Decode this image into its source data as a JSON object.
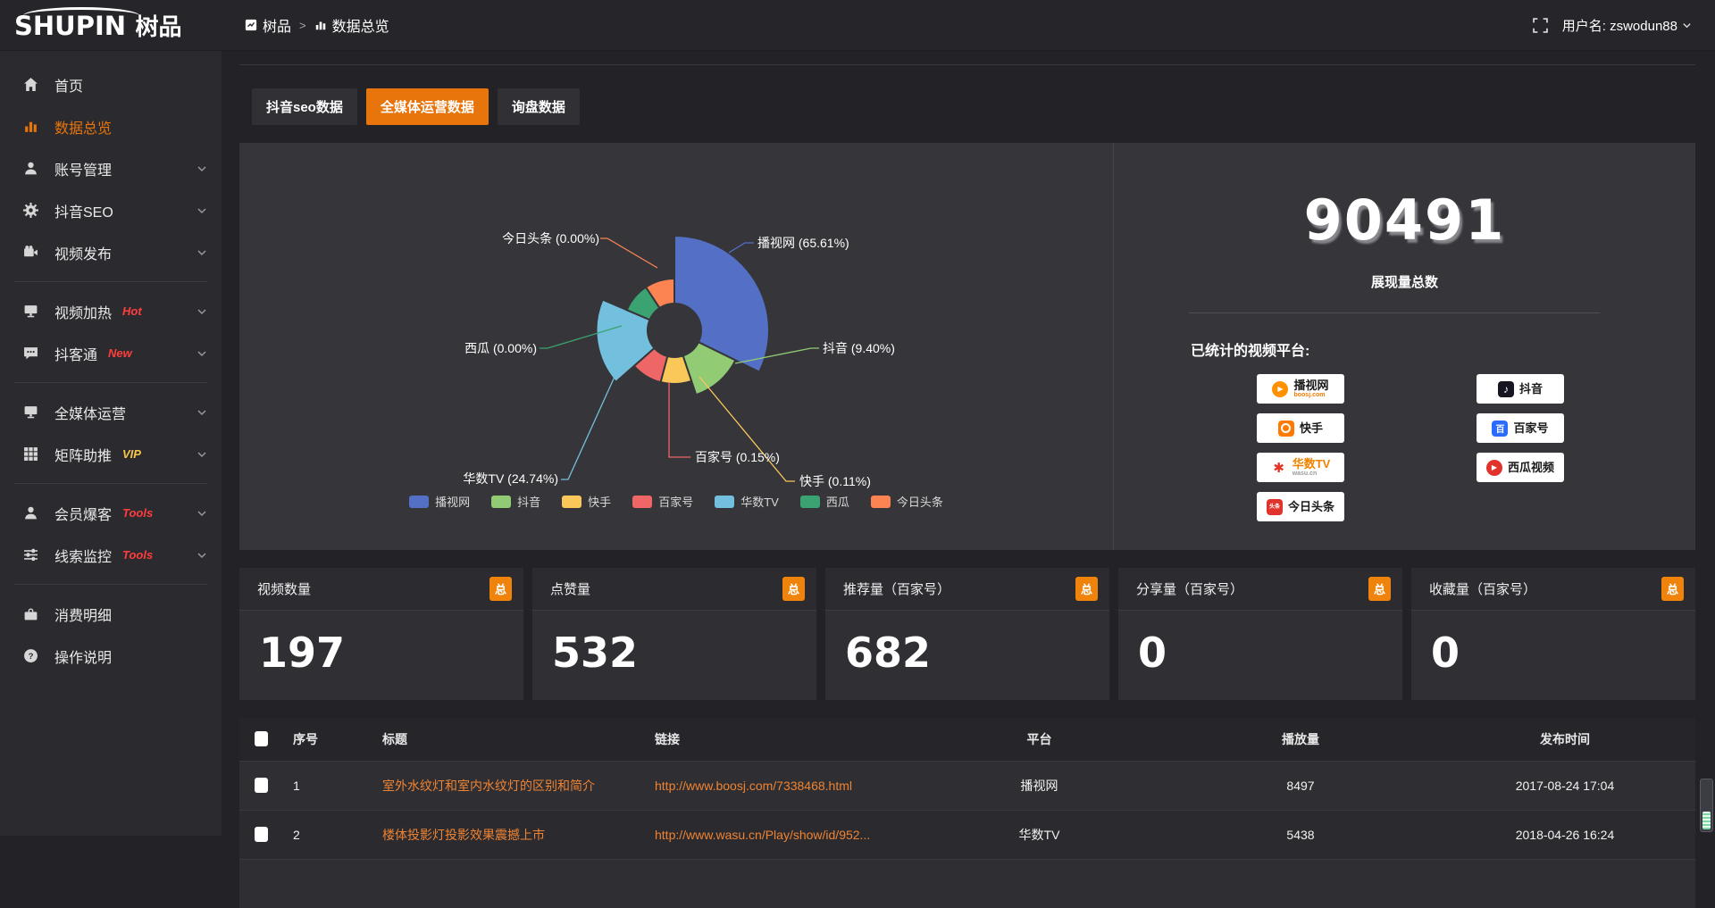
{
  "topbar": {
    "logo_main": "SHUPIN",
    "logo_cn": "树品",
    "breadcrumb": {
      "root": "树品",
      "current": "数据总览"
    },
    "username": "用户名: zswodun88"
  },
  "sidebar": {
    "items": [
      {
        "label": "首页",
        "icon": "home"
      },
      {
        "label": "数据总览",
        "icon": "bar-chart",
        "active": true
      },
      {
        "label": "账号管理",
        "icon": "user",
        "chevron": true
      },
      {
        "label": "抖音SEO",
        "icon": "gear",
        "chevron": true
      },
      {
        "label": "视频发布",
        "icon": "video",
        "chevron": true,
        "divider_after": true
      },
      {
        "label": "视频加热",
        "icon": "monitor",
        "badge": "Hot",
        "badge_color": "#ff3d3d",
        "chevron": true
      },
      {
        "label": "抖客通",
        "icon": "chat",
        "badge": "New",
        "badge_color": "#ff3d3d",
        "chevron": true,
        "divider_after": true
      },
      {
        "label": "全媒体运营",
        "icon": "monitor",
        "chevron": true
      },
      {
        "label": "矩阵助推",
        "icon": "grid",
        "badge": "VIP",
        "badge_color": "#f6c64a",
        "chevron": true,
        "divider_after": true
      },
      {
        "label": "会员爆客",
        "icon": "user",
        "badge": "Tools",
        "badge_color": "#ff3d3d",
        "chevron": true
      },
      {
        "label": "线索监控",
        "icon": "sliders",
        "badge": "Tools",
        "badge_color": "#ff3d3d",
        "chevron": true,
        "divider_after": true
      },
      {
        "label": "消费明细",
        "icon": "wallet"
      },
      {
        "label": "操作说明",
        "icon": "help"
      }
    ]
  },
  "tabs": {
    "items": [
      "抖音seo数据",
      "全媒体运营数据",
      "询盘数据"
    ],
    "active_index": 1
  },
  "chart_data": {
    "type": "pie",
    "variant": "nightingale-rose",
    "title": "",
    "legend_position": "bottom",
    "slices": [
      {
        "name": "播视网",
        "percent": 65.61,
        "color": "#5470c6"
      },
      {
        "name": "抖音",
        "percent": 9.4,
        "color": "#91cc75"
      },
      {
        "name": "快手",
        "percent": 0.11,
        "color": "#fac858"
      },
      {
        "name": "百家号",
        "percent": 0.15,
        "color": "#ee6666"
      },
      {
        "name": "华数TV",
        "percent": 24.74,
        "color": "#73c0de"
      },
      {
        "name": "西瓜",
        "percent": 0,
        "color": "#3ba272"
      },
      {
        "name": "今日头条",
        "percent": 0,
        "color": "#fc8452"
      }
    ]
  },
  "summary": {
    "total_value": "90491",
    "total_label": "展现量总数",
    "platforms_title": "已统计的视频平台:",
    "platform_columns": [
      [
        {
          "name": "播视网",
          "sub": "boosj.com",
          "icon": "boosj"
        },
        {
          "name": "快手",
          "icon": "kuaishou"
        },
        {
          "name": "华数TV",
          "sub": "wasu.cn",
          "icon": "wasu",
          "name_style": "orange"
        },
        {
          "name": "今日头条",
          "icon": "toutiao"
        }
      ],
      [
        {
          "name": "抖音",
          "icon": "douyin"
        },
        {
          "name": "百家号",
          "icon": "baijia"
        },
        {
          "name": "西瓜视频",
          "icon": "xigua"
        }
      ]
    ]
  },
  "stat_cards": [
    {
      "title": "视频数量",
      "badge": "总",
      "value": "197"
    },
    {
      "title": "点赞量",
      "badge": "总",
      "value": "532"
    },
    {
      "title": "推荐量（百家号）",
      "badge": "总",
      "value": "682"
    },
    {
      "title": "分享量（百家号）",
      "badge": "总",
      "value": "0"
    },
    {
      "title": "收藏量（百家号）",
      "badge": "总",
      "value": "0"
    }
  ],
  "table": {
    "columns": [
      "",
      "序号",
      "标题",
      "链接",
      "平台",
      "播放量",
      "发布时间"
    ],
    "rows": [
      {
        "index": "1",
        "title": "室外水纹灯和室内水纹灯的区别和简介",
        "url": "http://www.boosj.com/7338468.html",
        "platform": "播视网",
        "views": "8497",
        "time": "2017-08-24 17:04"
      },
      {
        "index": "2",
        "title": "楼体投影灯投影效果震撼上市",
        "url": "http://www.wasu.cn/Play/show/id/952...",
        "platform": "华数TV",
        "views": "5438",
        "time": "2018-04-26 16:24"
      }
    ]
  }
}
